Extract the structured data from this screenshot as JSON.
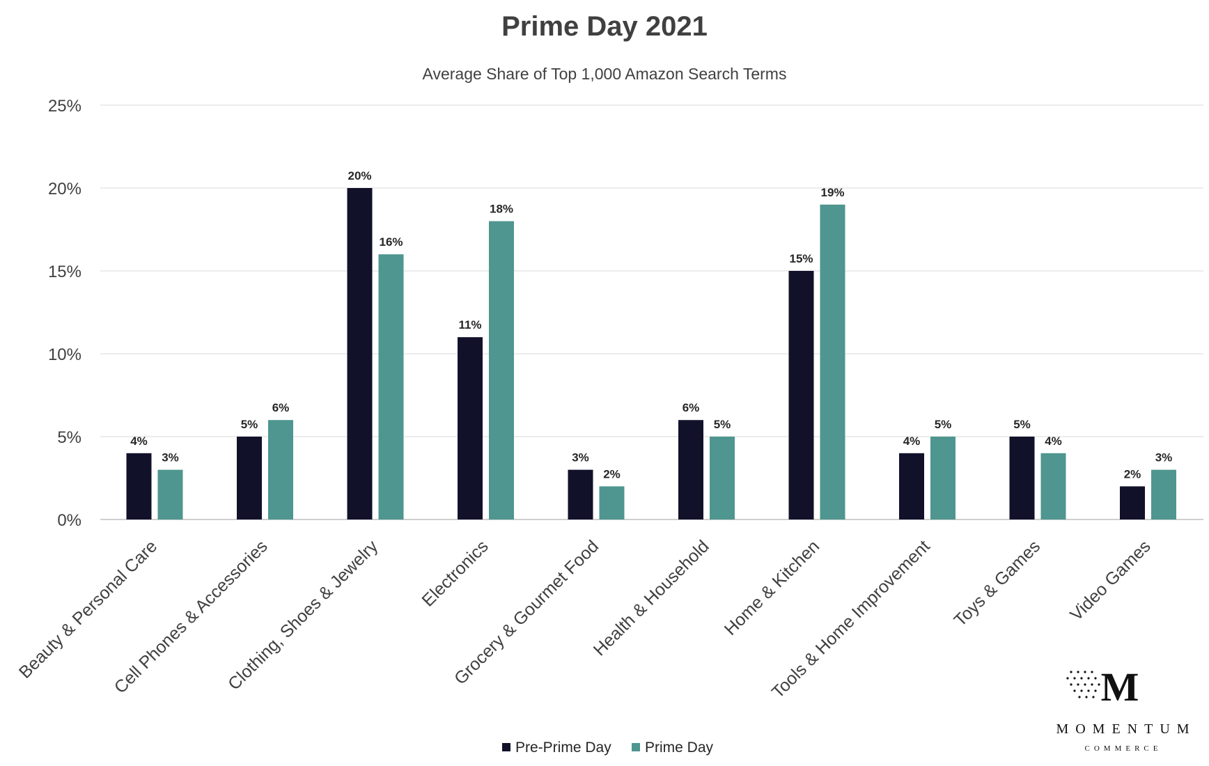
{
  "chart_data": {
    "type": "bar",
    "title": "Prime Day 2021",
    "subtitle": "Average Share of Top 1,000 Amazon Search Terms",
    "xlabel": "",
    "ylabel": "",
    "ylim": [
      0,
      25
    ],
    "yticks": [
      "0%",
      "5%",
      "10%",
      "15%",
      "20%",
      "25%"
    ],
    "ytick_values": [
      0,
      5,
      10,
      15,
      20,
      25
    ],
    "grid": true,
    "legend_position": "bottom",
    "categories": [
      "Beauty & Personal Care",
      "Cell Phones & Accessories",
      "Clothing, Shoes & Jewelry",
      "Electronics",
      "Grocery & Gourmet Food",
      "Health & Household",
      "Home & Kitchen",
      "Tools & Home Improvement",
      "Toys & Games",
      "Video Games"
    ],
    "series": [
      {
        "name": "Pre-Prime Day",
        "color": "#12112a",
        "values": [
          4,
          5,
          20,
          11,
          3,
          6,
          15,
          4,
          5,
          2
        ],
        "labels": [
          "4%",
          "5%",
          "20%",
          "11%",
          "3%",
          "6%",
          "15%",
          "4%",
          "5%",
          "2%"
        ]
      },
      {
        "name": "Prime Day",
        "color": "#4e968f",
        "values": [
          3,
          6,
          16,
          18,
          2,
          5,
          19,
          5,
          4,
          3
        ],
        "labels": [
          "3%",
          "6%",
          "16%",
          "18%",
          "2%",
          "5%",
          "19%",
          "5%",
          "4%",
          "3%"
        ]
      }
    ]
  },
  "logo": {
    "letter": "M",
    "name": "MOMENTUM",
    "tagline": "COMMERCE"
  }
}
